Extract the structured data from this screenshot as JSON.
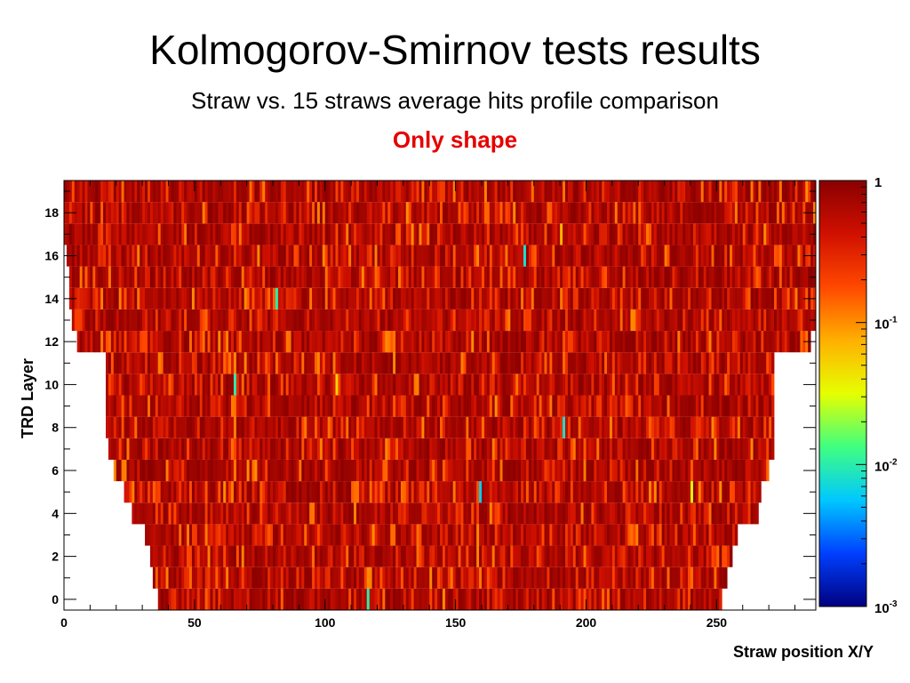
{
  "slide": {
    "title": "Kolmogorov-Smirnov tests results",
    "subtitle": "Straw vs. 15 straws average hits profile comparison",
    "note": "Only shape",
    "note_color": "#e60000"
  },
  "chart_data": {
    "type": "heatmap",
    "xlabel": "Straw position X/Y",
    "ylabel": "TRD Layer",
    "xlim": [
      0,
      288
    ],
    "ylim": [
      -0.5,
      19.5
    ],
    "x_ticks": [
      "0",
      "50",
      "100",
      "150",
      "200",
      "250"
    ],
    "y_ticks": [
      "0",
      "2",
      "4",
      "6",
      "8",
      "10",
      "12",
      "14",
      "16",
      "18"
    ],
    "colorbar": {
      "scale": "log",
      "range": [
        0.001,
        1
      ],
      "tick_labels": [
        {
          "base": "1",
          "exp": ""
        },
        {
          "base": "10",
          "exp": "-1"
        },
        {
          "base": "10",
          "exp": "-2"
        },
        {
          "base": "10",
          "exp": "-3"
        }
      ],
      "colors": [
        "#000080",
        "#0040ff",
        "#00c8ff",
        "#40ff80",
        "#e6ff00",
        "#ffb000",
        "#ff4800",
        "#d01000",
        "#8a0000"
      ]
    },
    "layer_coverage": [
      {
        "layer": 0,
        "x_min": 36,
        "x_max": 252
      },
      {
        "layer": 1,
        "x_min": 34,
        "x_max": 254
      },
      {
        "layer": 2,
        "x_min": 33,
        "x_max": 256
      },
      {
        "layer": 3,
        "x_min": 31,
        "x_max": 258
      },
      {
        "layer": 4,
        "x_min": 26,
        "x_max": 266
      },
      {
        "layer": 5,
        "x_min": 23,
        "x_max": 267
      },
      {
        "layer": 6,
        "x_min": 19,
        "x_max": 270
      },
      {
        "layer": 7,
        "x_min": 17,
        "x_max": 272
      },
      {
        "layer": 8,
        "x_min": 16,
        "x_max": 272
      },
      {
        "layer": 9,
        "x_min": 16,
        "x_max": 272
      },
      {
        "layer": 10,
        "x_min": 16,
        "x_max": 272
      },
      {
        "layer": 11,
        "x_min": 16,
        "x_max": 272
      },
      {
        "layer": 12,
        "x_min": 5,
        "x_max": 286
      },
      {
        "layer": 13,
        "x_min": 3,
        "x_max": 288
      },
      {
        "layer": 14,
        "x_min": 2,
        "x_max": 288
      },
      {
        "layer": 15,
        "x_min": 2,
        "x_max": 288
      },
      {
        "layer": 16,
        "x_min": 1,
        "x_max": 288
      },
      {
        "layer": 17,
        "x_min": 0,
        "x_max": 288
      },
      {
        "layer": 18,
        "x_min": 0,
        "x_max": 288
      },
      {
        "layer": 19,
        "x_min": 0,
        "x_max": 288
      }
    ],
    "notable_low_values": [
      {
        "layer": 17,
        "x": 190,
        "value": 0.07
      },
      {
        "layer": 16,
        "x": 176,
        "value": 0.008
      },
      {
        "layer": 14,
        "x": 81,
        "value": 0.01
      },
      {
        "layer": 10,
        "x": 104,
        "value": 0.05
      },
      {
        "layer": 10,
        "x": 65,
        "value": 0.01
      },
      {
        "layer": 8,
        "x": 191,
        "value": 0.008
      },
      {
        "layer": 5,
        "x": 159,
        "value": 0.006
      },
      {
        "layer": 5,
        "x": 240,
        "value": 0.03
      },
      {
        "layer": 0,
        "x": 116,
        "value": 0.01
      }
    ]
  }
}
